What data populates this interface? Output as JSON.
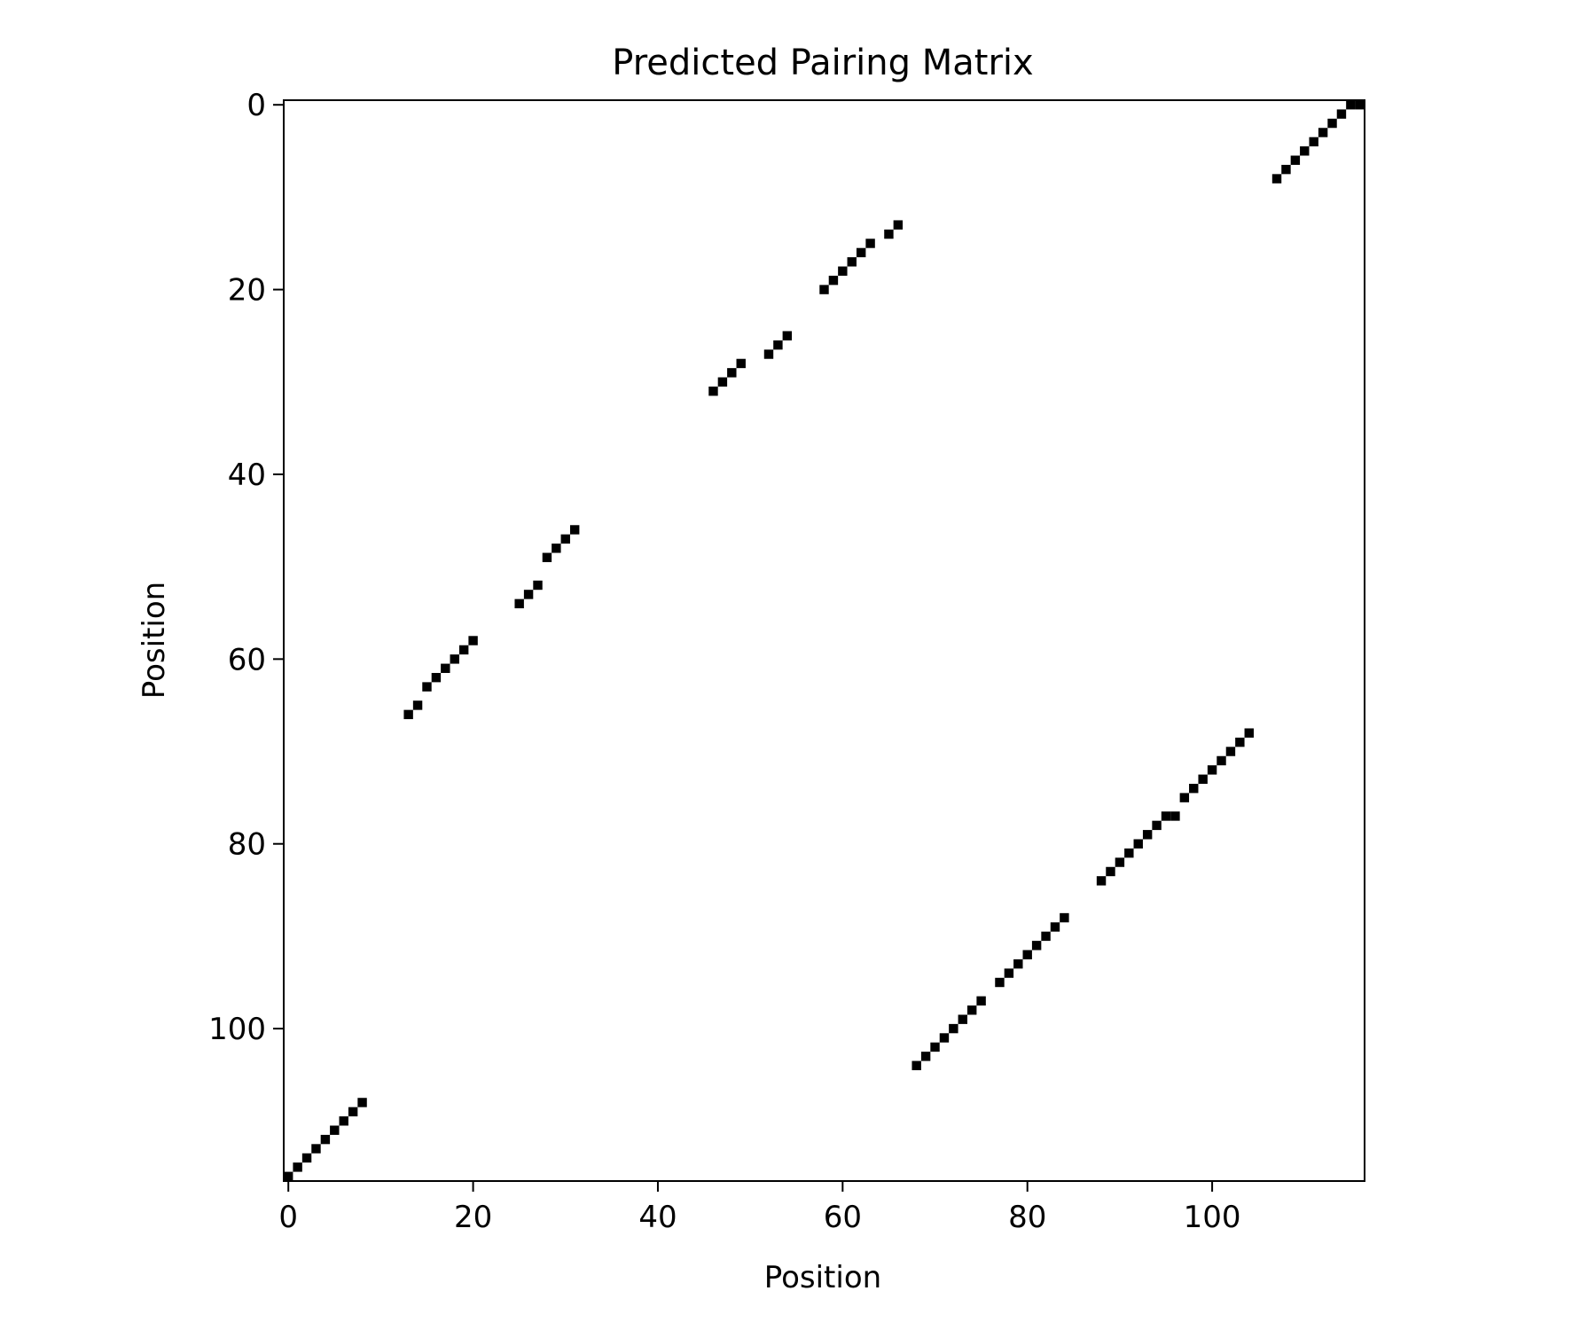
{
  "chart_data": {
    "type": "heatmap",
    "title": "Predicted Pairing Matrix",
    "xlabel": "Position",
    "ylabel": "Position",
    "xlim": [
      -0.5,
      116.5
    ],
    "ylim": [
      116.5,
      -0.5
    ],
    "y_inverted": true,
    "xticks": [
      0,
      20,
      40,
      60,
      80,
      100
    ],
    "yticks": [
      0,
      20,
      40,
      60,
      80,
      100
    ],
    "grid": false,
    "colormap": {
      "unpaired": "#ffffff",
      "paired": "#000000"
    },
    "value_on_cells": 1,
    "paired_cells": [
      [
        0,
        116
      ],
      [
        1,
        115
      ],
      [
        2,
        114
      ],
      [
        3,
        113
      ],
      [
        4,
        112
      ],
      [
        5,
        111
      ],
      [
        6,
        110
      ],
      [
        7,
        109
      ],
      [
        8,
        108
      ],
      [
        13,
        66
      ],
      [
        14,
        65
      ],
      [
        15,
        63
      ],
      [
        16,
        62
      ],
      [
        17,
        61
      ],
      [
        18,
        60
      ],
      [
        19,
        59
      ],
      [
        20,
        58
      ],
      [
        25,
        54
      ],
      [
        26,
        53
      ],
      [
        27,
        52
      ],
      [
        28,
        49
      ],
      [
        29,
        48
      ],
      [
        30,
        47
      ],
      [
        31,
        46
      ],
      [
        46,
        31
      ],
      [
        47,
        30
      ],
      [
        48,
        29
      ],
      [
        49,
        28
      ],
      [
        52,
        27
      ],
      [
        53,
        26
      ],
      [
        54,
        25
      ],
      [
        58,
        20
      ],
      [
        59,
        19
      ],
      [
        60,
        18
      ],
      [
        61,
        17
      ],
      [
        62,
        16
      ],
      [
        63,
        15
      ],
      [
        65,
        14
      ],
      [
        66,
        13
      ],
      [
        68,
        104
      ],
      [
        69,
        103
      ],
      [
        70,
        102
      ],
      [
        71,
        101
      ],
      [
        72,
        100
      ],
      [
        73,
        99
      ],
      [
        74,
        98
      ],
      [
        75,
        97
      ],
      [
        77,
        95
      ],
      [
        78,
        94
      ],
      [
        79,
        93
      ],
      [
        80,
        92
      ],
      [
        81,
        91
      ],
      [
        82,
        90
      ],
      [
        83,
        89
      ],
      [
        84,
        88
      ],
      [
        88,
        84
      ],
      [
        89,
        83
      ],
      [
        90,
        82
      ],
      [
        91,
        81
      ],
      [
        92,
        80
      ],
      [
        93,
        79
      ],
      [
        94,
        78
      ],
      [
        95,
        77
      ],
      [
        96,
        77
      ],
      [
        97,
        75
      ],
      [
        98,
        74
      ],
      [
        99,
        73
      ],
      [
        100,
        72
      ],
      [
        101,
        71
      ],
      [
        102,
        70
      ],
      [
        103,
        69
      ],
      [
        104,
        68
      ],
      [
        107,
        8
      ],
      [
        108,
        7
      ],
      [
        109,
        6
      ],
      [
        110,
        5
      ],
      [
        111,
        4
      ],
      [
        112,
        3
      ],
      [
        113,
        2
      ],
      [
        114,
        1
      ],
      [
        115,
        0
      ],
      [
        116,
        0
      ]
    ]
  }
}
